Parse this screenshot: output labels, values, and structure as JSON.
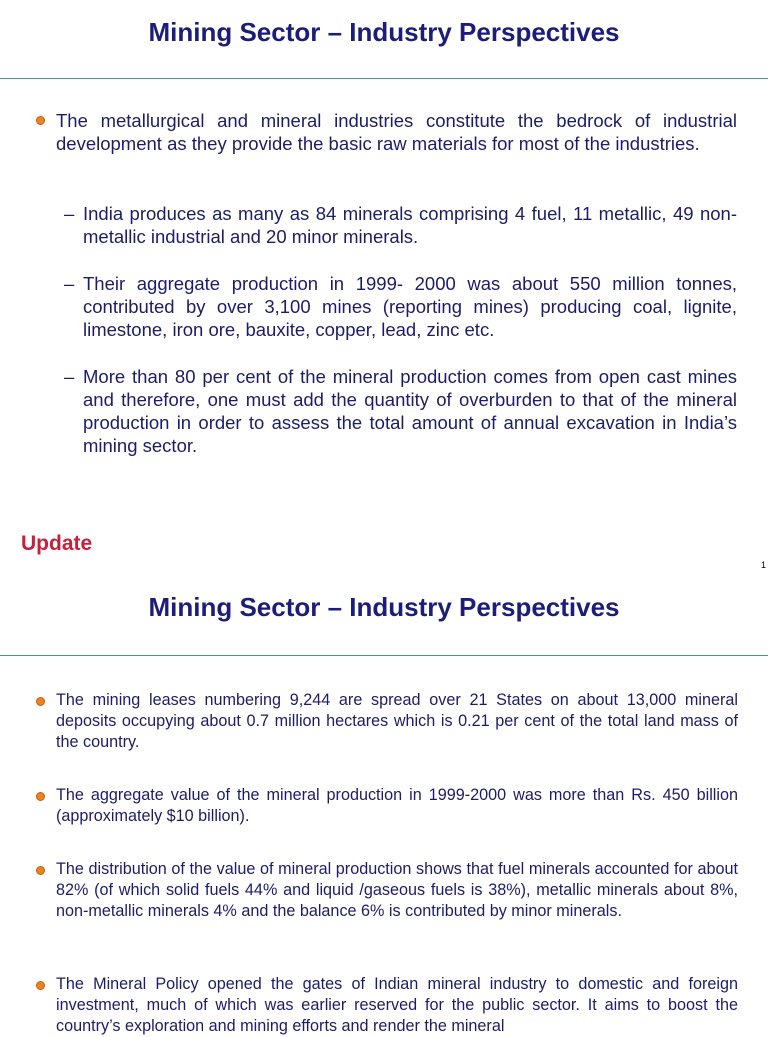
{
  "slides": [
    {
      "title": "Mining Sector – Industry Perspectives",
      "bullets": [
        {
          "text": "The metallurgical and mineral industries constitute the bedrock of industrial development as they provide the basic raw materials for most of the industries.",
          "subitems": [
            "India produces as many as 84 minerals comprising 4 fuel, 11 metallic, 49 non-metallic industrial and 20 minor minerals.",
            "Their aggregate production in 1999- 2000 was about 550 million tonnes, contributed by over 3,100 mines (reporting mines) producing coal, lignite, limestone, iron ore, bauxite, copper, lead, zinc etc.",
            "More than 80 per cent of the mineral production comes from open cast mines and therefore, one must add the quantity of overburden to that of the mineral production in order to assess the total amount of annual excavation in India’s mining sector."
          ]
        }
      ],
      "note": "Update",
      "page_number": "1"
    },
    {
      "title": "Mining Sector – Industry Perspectives",
      "bullets": [
        "The mining leases numbering 9,244 are spread over 21 States on about 13,000 mineral deposits occupying about 0.7 million hectares which is 0.21 per cent of the total land mass of the country.",
        "The aggregate value of the mineral production in 1999-2000 was more than Rs. 450 billion (approximately $10 billion).",
        "The distribution of the value of mineral production shows that fuel minerals accounted for about 82% (of which solid fuels 44% and liquid /gaseous fuels is 38%), metallic minerals about 8%, non-metallic minerals 4% and the balance 6% is contributed by minor minerals.",
        "The Mineral Policy opened the gates of Indian mineral industry to domestic and foreign investment, much of which was earlier reserved for the public sector. It aims to boost the country’s exploration and mining efforts and render the mineral"
      ]
    }
  ]
}
